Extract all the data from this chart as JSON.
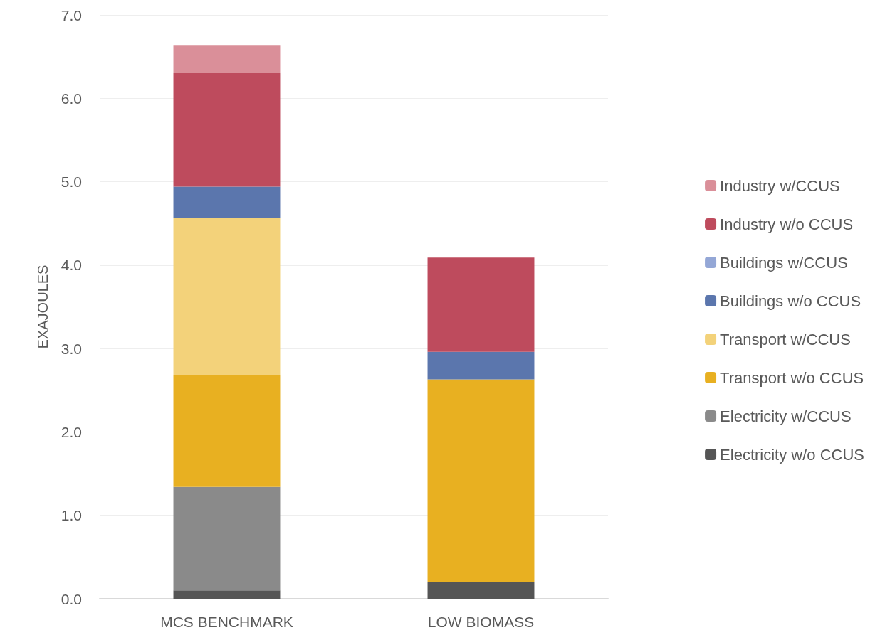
{
  "chart_data": {
    "type": "bar",
    "ylabel": "EXAJOULES",
    "categories": [
      "MCS BENCHMARK",
      "LOW BIOMASS"
    ],
    "stacked": true,
    "series": [
      {
        "name": "Electricity w/o CCUS",
        "color": "#555555",
        "values": [
          0.1,
          0.2
        ]
      },
      {
        "name": "Electricity w/CCUS",
        "color": "#8a8a8a",
        "values": [
          1.24,
          null
        ]
      },
      {
        "name": "Transport w/o CCUS",
        "color": "#e8b021",
        "values": [
          1.34,
          2.43
        ]
      },
      {
        "name": "Transport w/CCUS",
        "color": "#f3d27a",
        "values": [
          1.89,
          null
        ]
      },
      {
        "name": "Buildings w/o CCUS",
        "color": "#5b76ad",
        "values": [
          0.37,
          0.33
        ]
      },
      {
        "name": "Buildings w/CCUS",
        "color": "#94a7d6",
        "values": [
          null,
          null
        ]
      },
      {
        "name": "Industry w/o CCUS",
        "color": "#be4b5d",
        "values": [
          1.37,
          1.13
        ]
      },
      {
        "name": "Industry w/CCUS",
        "color": "#da8f99",
        "values": [
          0.33,
          null
        ]
      }
    ],
    "ylim": [
      0,
      7
    ],
    "yticks": [
      {
        "value": 0,
        "label": "0.0"
      },
      {
        "value": 1,
        "label": "1.0"
      },
      {
        "value": 2,
        "label": "2.0"
      },
      {
        "value": 3,
        "label": "3.0"
      },
      {
        "value": 4,
        "label": "4.0"
      },
      {
        "value": 5,
        "label": "5.0"
      },
      {
        "value": 6,
        "label": "6.0"
      },
      {
        "value": 7,
        "label": "7.0"
      }
    ],
    "grid": "y",
    "legend": "right"
  }
}
